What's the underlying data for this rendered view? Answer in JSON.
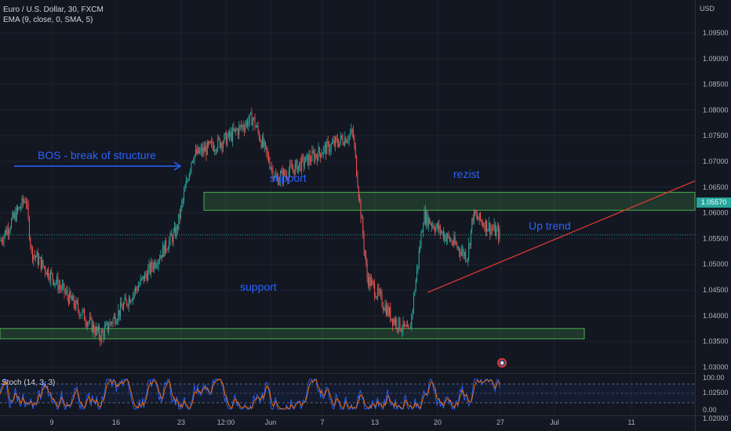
{
  "header": {
    "symbol_line": "Euro / U.S. Dollar, 30, FXCM",
    "indicator_line": "EMA (9, close, 0, SMA, 5)"
  },
  "price_axis": {
    "currency": "USD",
    "ticks": [
      "1.09500",
      "1.09000",
      "1.08500",
      "1.08000",
      "1.07500",
      "1.07000",
      "1.06500",
      "1.06000",
      "1.05500",
      "1.05000",
      "1.04500",
      "1.04000",
      "1.03500",
      "1.03000",
      "1.02500",
      "1.02000"
    ],
    "current_price": "1.05570",
    "current_price_color": "#26a69a"
  },
  "stoch_axis": {
    "ticks": [
      "100.00",
      "0.00"
    ]
  },
  "time_axis": {
    "labels": [
      "9",
      "16",
      "23",
      "12:00",
      "Jun",
      "7",
      "13",
      "20",
      "27",
      "Jul",
      "11"
    ]
  },
  "indicator_pane": {
    "label": "Stoch (14, 3, 3)"
  },
  "annotations": {
    "bos": "BOS - break of structure",
    "support_upper": "support",
    "rezist": "rezist",
    "support_lower": "support",
    "up_trend": "Up trend"
  },
  "chart_data": {
    "type": "candlestick",
    "title": "Euro / U.S. Dollar, 30, FXCM",
    "ylabel": "USD",
    "ylim": [
      1.0145,
      1.0995
    ],
    "x_labels": [
      "9",
      "16",
      "23",
      "12:00",
      "Jun",
      "7",
      "13",
      "20",
      "27",
      "Jul",
      "11"
    ],
    "price_path": [
      {
        "x": "start",
        "y": 1.0545
      },
      {
        "x": "9",
        "y": 1.0525
      },
      {
        "x": "early-9",
        "y": 1.063
      },
      {
        "x": "16",
        "y": 1.036
      },
      {
        "x": "16-late",
        "y": 1.0455
      },
      {
        "x": "23",
        "y": 1.0565
      },
      {
        "x": "23-late",
        "y": 1.071
      },
      {
        "x": "12:00",
        "y": 1.0745
      },
      {
        "x": "12:00-late",
        "y": 1.0785
      },
      {
        "x": "Jun",
        "y": 1.0665
      },
      {
        "x": "7",
        "y": 1.072
      },
      {
        "x": "13",
        "y": 1.0755
      },
      {
        "x": "13-late",
        "y": 1.0475
      },
      {
        "x": "13-low",
        "y": 1.0395
      },
      {
        "x": "20",
        "y": 1.0365
      },
      {
        "x": "20-high",
        "y": 1.0595
      },
      {
        "x": "27",
        "y": 1.0515
      },
      {
        "x": "27-high",
        "y": 1.0595
      },
      {
        "x": "27-last",
        "y": 1.0557
      }
    ],
    "zones": [
      {
        "name": "support",
        "low": 1.0605,
        "high": 1.064
      },
      {
        "name": "support",
        "low": 1.0355,
        "high": 1.0375
      }
    ],
    "trendline": {
      "name": "Up trend",
      "from": 1.0445,
      "to": 1.0662
    },
    "current_price": 1.0557,
    "grid": true
  }
}
